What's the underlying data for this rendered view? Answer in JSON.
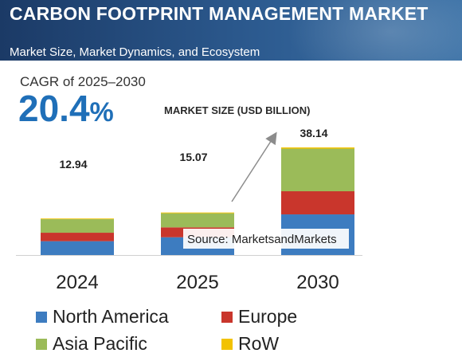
{
  "header": {
    "title": "CARBON FOOTPRINT MANAGEMENT MARKET",
    "subtitle": "Market Size, Market Dynamics, and Ecosystem"
  },
  "cagr": {
    "label": "CAGR of 2025–2030",
    "value": "20.4",
    "unit": "%"
  },
  "chart_data": {
    "type": "bar",
    "stacked": true,
    "title": "MARKET SIZE (USD BILLION)",
    "categories": [
      "2024",
      "2025",
      "2030"
    ],
    "totals": [
      "12.94",
      "15.07",
      "38.14"
    ],
    "series": [
      {
        "name": "North America",
        "color": "#3d7cc0",
        "values": [
          4.9,
          6.3,
          14.4
        ]
      },
      {
        "name": "Europe",
        "color": "#c9362c",
        "values": [
          3.0,
          3.5,
          8.2
        ]
      },
      {
        "name": "Asia Pacific",
        "color": "#9bbb59",
        "values": [
          4.8,
          5.0,
          15.1
        ]
      },
      {
        "name": "RoW",
        "color": "#f2c200",
        "values": [
          0.24,
          0.27,
          0.44
        ]
      }
    ],
    "ylim": [
      0,
      38.14
    ],
    "grid": false,
    "legend": "bottom",
    "annotation": "Source: MarketsandMarkets",
    "trend_arrow": {
      "from": "2025",
      "to": "2030"
    }
  }
}
